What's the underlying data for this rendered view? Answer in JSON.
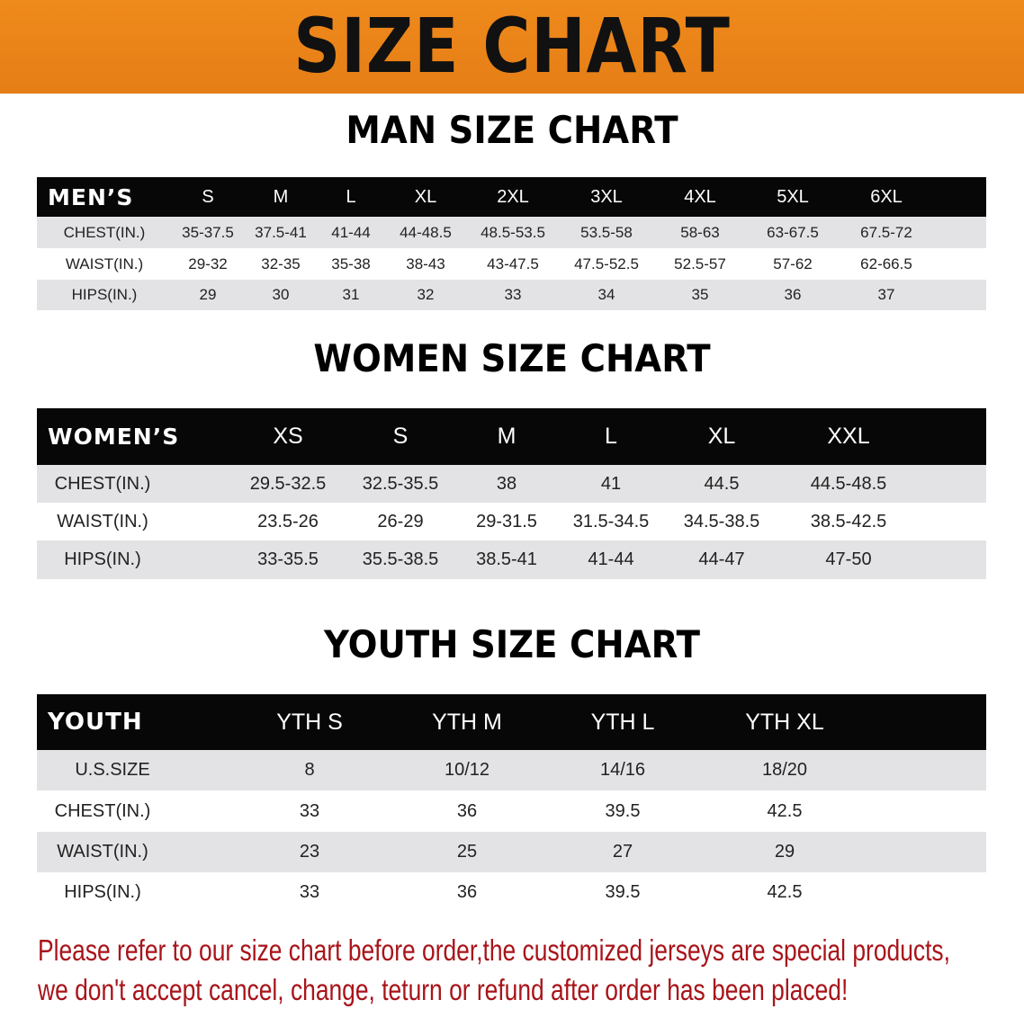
{
  "banner": {
    "title": "SIZE CHART",
    "color": "#e8831a"
  },
  "men": {
    "title": "MAN SIZE CHART",
    "header": "MEN’S",
    "sizes": [
      "S",
      "M",
      "L",
      "XL",
      "2XL",
      "3XL",
      "4XL",
      "5XL",
      "6XL"
    ],
    "rows": [
      {
        "label": "CHEST(IN.)",
        "values": [
          "35-37.5",
          "37.5-41",
          "41-44",
          "44-48.5",
          "48.5-53.5",
          "53.5-58",
          "58-63",
          "63-67.5",
          "67.5-72"
        ]
      },
      {
        "label": "WAIST(IN.)",
        "values": [
          "29-32",
          "32-35",
          "35-38",
          "38-43",
          "43-47.5",
          "47.5-52.5",
          "52.5-57",
          "57-62",
          "62-66.5"
        ]
      },
      {
        "label": "HIPS(IN.)",
        "values": [
          "29",
          "30",
          "31",
          "32",
          "33",
          "34",
          "35",
          "36",
          "37"
        ]
      }
    ]
  },
  "women": {
    "title": "WOMEN SIZE CHART",
    "header": "WOMEN’S",
    "sizes": [
      "XS",
      "S",
      "M",
      "L",
      "XL",
      "XXL"
    ],
    "rows": [
      {
        "label": "CHEST(IN.)",
        "values": [
          "29.5-32.5",
          "32.5-35.5",
          "38",
          "41",
          "44.5",
          "44.5-48.5"
        ]
      },
      {
        "label": "WAIST(IN.)",
        "values": [
          "23.5-26",
          "26-29",
          "29-31.5",
          "31.5-34.5",
          "34.5-38.5",
          "38.5-42.5"
        ]
      },
      {
        "label": "HIPS(IN.)",
        "values": [
          "33-35.5",
          "35.5-38.5",
          "38.5-41",
          "41-44",
          "44-47",
          "47-50"
        ]
      }
    ]
  },
  "youth": {
    "title": "YOUTH SIZE CHART",
    "header": "YOUTH",
    "sizes": [
      "YTH S",
      "YTH M",
      "YTH L",
      "YTH XL"
    ],
    "rows": [
      {
        "label": "U.S.SIZE",
        "values": [
          "8",
          "10/12",
          "14/16",
          "18/20"
        ]
      },
      {
        "label": "CHEST(IN.)",
        "values": [
          "33",
          "36",
          "39.5",
          "42.5"
        ]
      },
      {
        "label": "WAIST(IN.)",
        "values": [
          "23",
          "25",
          "27",
          "29"
        ]
      },
      {
        "label": "HIPS(IN.)",
        "values": [
          "33",
          "36",
          "39.5",
          "42.5"
        ]
      }
    ]
  },
  "notice": {
    "line1": "Please refer to our size chart before order,the customized jerseys are special products,",
    "line2": "we don't accept cancel, change, teturn or refund after order has been placed!",
    "color": "#a8141a"
  }
}
